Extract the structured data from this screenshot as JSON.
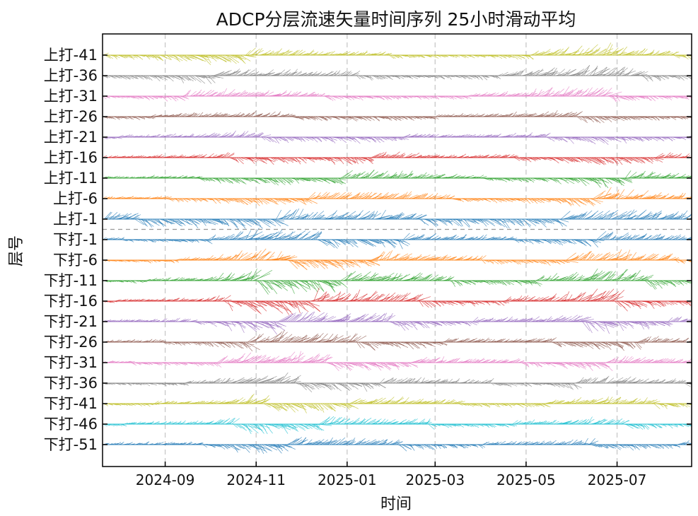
{
  "chart_data": {
    "type": "vector_timeseries",
    "title": "ADCP分层流速矢量时间序列  25小时滑动平均",
    "xlabel": "时间",
    "ylabel": "层号",
    "x_range": [
      "2024-07-21",
      "2025-08-20"
    ],
    "x_ticks": [
      "2024-09",
      "2024-11",
      "2025-01",
      "2025-03",
      "2025-05",
      "2025-07"
    ],
    "x_tick_dates": [
      "2024-09-01",
      "2024-11-01",
      "2025-01-01",
      "2025-03-01",
      "2025-05-01",
      "2025-07-01"
    ],
    "grid": "dashed vertical lines at x ticks",
    "separator": "dashed horizontal line between 上打-1 and 下打-1",
    "series": [
      {
        "name": "上打-41",
        "color": "#bcbd22",
        "amplitude": [
          0.25,
          0.35,
          0.8,
          0.5,
          0.35,
          0.3,
          0.25,
          0.2,
          0.25,
          0.5,
          0.9,
          0.4,
          0.3
        ]
      },
      {
        "name": "上打-36",
        "color": "#7f7f7f",
        "amplitude": [
          0.25,
          0.35,
          0.6,
          0.5,
          0.4,
          0.35,
          0.3,
          0.25,
          0.3,
          0.6,
          0.8,
          0.4,
          0.3
        ]
      },
      {
        "name": "上打-31",
        "color": "#e377c2",
        "amplitude": [
          0.2,
          0.3,
          0.5,
          0.45,
          0.35,
          0.3,
          0.25,
          0.2,
          0.3,
          0.55,
          0.7,
          0.35,
          0.25
        ]
      },
      {
        "name": "上打-26",
        "color": "#8c564b",
        "amplitude": [
          0.2,
          0.25,
          0.35,
          0.4,
          0.3,
          0.35,
          0.3,
          0.2,
          0.25,
          0.4,
          0.5,
          0.3,
          0.2
        ]
      },
      {
        "name": "上打-21",
        "color": "#9467bd",
        "amplitude": [
          0.15,
          0.2,
          0.3,
          0.45,
          0.35,
          0.45,
          0.35,
          0.2,
          0.25,
          0.35,
          0.55,
          0.35,
          0.2
        ]
      },
      {
        "name": "上打-16",
        "color": "#d62728",
        "amplitude": [
          0.15,
          0.2,
          0.25,
          0.5,
          0.4,
          0.5,
          0.4,
          0.25,
          0.25,
          0.35,
          0.65,
          0.45,
          0.25
        ]
      },
      {
        "name": "上打-11",
        "color": "#2ca02c",
        "amplitude": [
          0.15,
          0.2,
          0.25,
          0.55,
          0.45,
          0.6,
          0.5,
          0.3,
          0.3,
          0.35,
          0.75,
          0.55,
          0.3
        ]
      },
      {
        "name": "上打-6",
        "color": "#ff7f0e",
        "amplitude": [
          0.15,
          0.2,
          0.25,
          0.55,
          0.45,
          0.6,
          0.5,
          0.3,
          0.3,
          0.35,
          0.75,
          0.55,
          0.3
        ]
      },
      {
        "name": "上打-1",
        "color": "#1f77b4",
        "amplitude": [
          0.55,
          0.6,
          0.6,
          0.7,
          0.65,
          0.65,
          0.6,
          0.55,
          0.6,
          0.6,
          0.7,
          0.7,
          0.6
        ]
      },
      {
        "name": "下打-1",
        "color": "#1f77b4",
        "amplitude": [
          0.15,
          0.2,
          0.25,
          0.85,
          0.7,
          0.6,
          0.6,
          0.35,
          0.3,
          0.35,
          0.6,
          0.5,
          0.3
        ]
      },
      {
        "name": "下打-6",
        "color": "#ff7f0e",
        "amplitude": [
          0.15,
          0.2,
          0.25,
          0.9,
          0.75,
          0.65,
          0.6,
          0.35,
          0.3,
          0.4,
          0.75,
          0.55,
          0.3
        ]
      },
      {
        "name": "下打-11",
        "color": "#2ca02c",
        "amplitude": [
          0.15,
          0.2,
          0.25,
          1.0,
          0.8,
          0.7,
          0.7,
          0.4,
          0.3,
          0.45,
          0.95,
          0.6,
          0.3
        ]
      },
      {
        "name": "下打-16",
        "color": "#d62728",
        "amplitude": [
          0.15,
          0.2,
          0.25,
          1.0,
          0.85,
          0.7,
          0.7,
          0.4,
          0.3,
          0.45,
          0.95,
          0.55,
          0.3
        ]
      },
      {
        "name": "下打-21",
        "color": "#9467bd",
        "amplitude": [
          0.15,
          0.2,
          0.25,
          0.9,
          0.8,
          0.65,
          0.6,
          0.35,
          0.3,
          0.4,
          0.8,
          0.5,
          0.3
        ]
      },
      {
        "name": "下打-26",
        "color": "#8c564b",
        "amplitude": [
          0.15,
          0.2,
          0.25,
          0.85,
          0.75,
          0.6,
          0.55,
          0.35,
          0.3,
          0.35,
          0.7,
          0.45,
          0.25
        ]
      },
      {
        "name": "下打-31",
        "color": "#e377c2",
        "amplitude": [
          0.15,
          0.2,
          0.25,
          0.8,
          0.7,
          0.6,
          0.55,
          0.35,
          0.3,
          0.35,
          0.6,
          0.45,
          0.25
        ]
      },
      {
        "name": "下打-36",
        "color": "#7f7f7f",
        "amplitude": [
          0.15,
          0.2,
          0.25,
          0.75,
          0.65,
          0.55,
          0.5,
          0.3,
          0.3,
          0.35,
          0.55,
          0.4,
          0.25
        ]
      },
      {
        "name": "下打-41",
        "color": "#bcbd22",
        "amplitude": [
          0.15,
          0.2,
          0.25,
          0.7,
          0.6,
          0.5,
          0.5,
          0.3,
          0.25,
          0.3,
          0.55,
          0.4,
          0.25
        ]
      },
      {
        "name": "下打-46",
        "color": "#17becf",
        "amplitude": [
          0.15,
          0.2,
          0.25,
          0.7,
          0.6,
          0.5,
          0.45,
          0.3,
          0.25,
          0.3,
          0.5,
          0.35,
          0.25
        ]
      },
      {
        "name": "下打-51",
        "color": "#1f77b4",
        "amplitude": [
          0.15,
          0.2,
          0.25,
          0.65,
          0.55,
          0.5,
          0.45,
          0.3,
          0.25,
          0.3,
          0.45,
          0.35,
          0.25
        ]
      }
    ]
  }
}
